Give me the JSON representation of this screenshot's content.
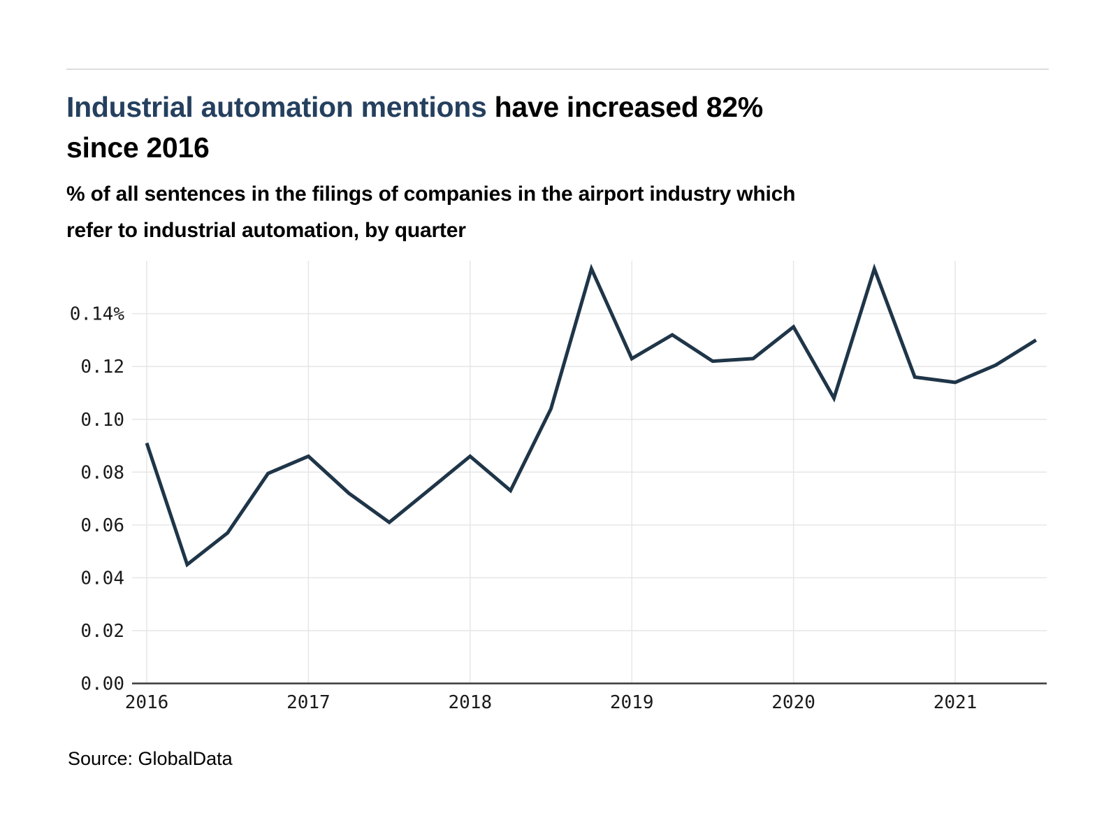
{
  "page": {
    "title": {
      "accent": "Industrial automation mentions",
      "rest_line1": " have increased 82%",
      "line2": "since 2016"
    },
    "subtitle": {
      "line1": "% of all sentences in the filings of companies in the airport industry which",
      "line2": "refer to industrial automation, by quarter"
    },
    "source": "Source: GlobalData"
  },
  "colors": {
    "accent_navy": "#25405e",
    "series_line": "#1f3548",
    "grid": "#e6e6e6",
    "axis": "#383838",
    "tick_text": "#1a1a1a"
  },
  "chart_data": {
    "type": "line",
    "title": "Industrial automation mentions have increased 82% since 2016",
    "subtitle": "% of all sentences in the filings of companies in the airport industry which refer to industrial automation, by quarter",
    "x_unit": "quarter",
    "x": [
      "2016-Q1",
      "2016-Q2",
      "2016-Q3",
      "2016-Q4",
      "2017-Q1",
      "2017-Q2",
      "2017-Q3",
      "2017-Q4",
      "2018-Q1",
      "2018-Q2",
      "2018-Q3",
      "2018-Q4",
      "2019-Q1",
      "2019-Q2",
      "2019-Q3",
      "2019-Q4",
      "2020-Q1",
      "2020-Q2",
      "2020-Q3",
      "2020-Q4",
      "2021-Q1",
      "2021-Q2",
      "2021-Q3"
    ],
    "values": [
      0.091,
      0.045,
      0.057,
      0.0795,
      0.086,
      0.072,
      0.061,
      0.0735,
      0.086,
      0.073,
      0.104,
      0.157,
      0.123,
      0.132,
      0.122,
      0.123,
      0.135,
      0.108,
      0.157,
      0.116,
      0.114,
      0.1205,
      0.13
    ],
    "ylabel": "",
    "xlabel": "",
    "ylim": [
      0,
      0.16
    ],
    "y_tick_values": [
      0.14,
      0.12,
      0.1,
      0.08,
      0.06,
      0.04,
      0.02,
      0.0
    ],
    "y_tick_labels": [
      "0.14%",
      "0.12",
      "0.10",
      "0.08",
      "0.06",
      "0.04",
      "0.02",
      "0.00"
    ],
    "x_tick_labels": [
      "2016",
      "2017",
      "2018",
      "2019",
      "2020",
      "2021"
    ],
    "grid": true,
    "legend": "none"
  }
}
